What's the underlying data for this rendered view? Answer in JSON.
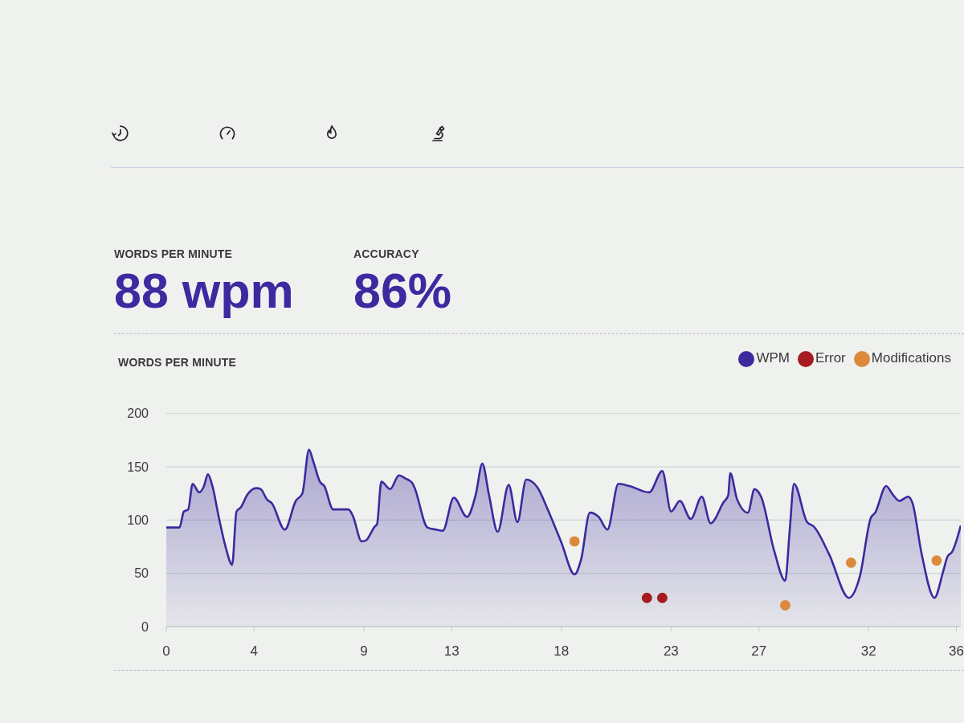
{
  "chart_data": [
    {
      "type": "other",
      "annotations": [
        "WORDS PER MINUTE",
        "88 wpm",
        "ACCURACY",
        "86%"
      ]
    },
    {
      "type": "area",
      "title": "WORDS PER MINUTE",
      "xlim": [
        0,
        36.2
      ],
      "xticks": [
        0,
        4,
        9,
        13,
        18,
        23,
        27,
        32,
        36
      ],
      "ylim": [
        0,
        200
      ],
      "yticks": [
        0,
        50,
        100,
        150,
        200
      ],
      "grid": "y",
      "legend": "top right",
      "series": [
        {
          "name": "WPM",
          "type": "area",
          "color": "#3b2a9e",
          "x": [
            0,
            0.6,
            0.8,
            1.0,
            1.2,
            1.5,
            1.7,
            1.9,
            2.1,
            2.4,
            2.7,
            3.0,
            3.2,
            3.4,
            3.7,
            4.1,
            4.3,
            4.6,
            4.8,
            5.4,
            5.9,
            6.2,
            6.5,
            6.7,
            7.0,
            7.2,
            7.6,
            8.3,
            8.5,
            8.9,
            9.1,
            9.5,
            9.6,
            9.8,
            10.2,
            10.6,
            10.9,
            11.2,
            11.3,
            11.9,
            12.3,
            12.6,
            13.1,
            13.7,
            14.1,
            14.4,
            14.7,
            15.1,
            15.6,
            16.0,
            16.4,
            16.9,
            17.4,
            18.0,
            18.6,
            18.9,
            19.3,
            19.7,
            20.1,
            20.6,
            21.1,
            22.0,
            22.6,
            23.0,
            23.4,
            23.9,
            24.4,
            24.8,
            25.4,
            25.6,
            25.7,
            26.0,
            26.5,
            26.8,
            27.1,
            27.7,
            28.2,
            28.4,
            28.6,
            29.2,
            29.5,
            30.2,
            31.1,
            31.6,
            32.1,
            32.3,
            32.8,
            33.1,
            33.4,
            33.8,
            34.0,
            34.4,
            35.0,
            35.4,
            35.6,
            35.8,
            36.2
          ],
          "values": [
            93,
            93,
            108,
            110,
            134,
            126,
            131,
            143,
            132,
            102,
            75,
            58,
            108,
            112,
            124,
            130,
            129,
            119,
            116,
            91,
            118,
            125,
            166,
            155,
            136,
            132,
            110,
            110,
            104,
            80,
            81,
            94,
            96,
            136,
            129,
            142,
            139,
            135,
            131,
            93,
            91,
            90,
            121,
            103,
            124,
            153,
            124,
            89,
            133,
            98,
            138,
            131,
            109,
            79,
            49,
            63,
            107,
            103,
            91,
            134,
            132,
            126,
            146,
            108,
            118,
            101,
            122,
            97,
            117,
            123,
            144,
            120,
            107,
            129,
            122,
            71,
            43,
            89,
            134,
            98,
            94,
            68,
            27,
            47,
            102,
            107,
            132,
            124,
            118,
            122,
            116,
            70,
            27,
            52,
            66,
            70,
            95
          ]
        },
        {
          "name": "Error",
          "type": "scatter",
          "color": "#a61b1f",
          "marker": "circle",
          "x": [
            21.9,
            22.6
          ],
          "values": [
            27,
            27
          ]
        },
        {
          "name": "Modifications",
          "type": "scatter",
          "color": "#db8a3c",
          "marker": "circle",
          "x": [
            18.6,
            28.2,
            31.2,
            35.1
          ],
          "values": [
            80,
            20,
            60,
            62
          ]
        }
      ]
    }
  ]
}
